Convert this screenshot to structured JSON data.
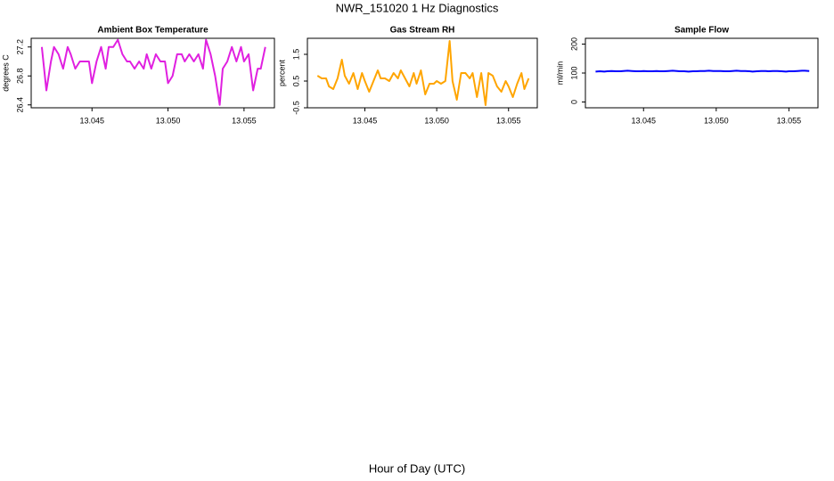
{
  "title": "NWR_151020  1 Hz Diagnostics",
  "xlabel": "Hour of Day (UTC)",
  "chart_data": [
    {
      "type": "line",
      "title": "Ambient Box Temperature",
      "ylabel": "degrees C",
      "x": [
        13.0417,
        13.042,
        13.0423,
        13.0425,
        13.0428,
        13.0431,
        13.0434,
        13.0436,
        13.0439,
        13.0442,
        13.0445,
        13.0448,
        13.045,
        13.0453,
        13.0456,
        13.0459,
        13.0461,
        13.0464,
        13.0467,
        13.047,
        13.0473,
        13.0475,
        13.0478,
        13.0481,
        13.0484,
        13.0486,
        13.0489,
        13.0492,
        13.0495,
        13.0498,
        13.05,
        13.0503,
        13.0506,
        13.0509,
        13.0511,
        13.0514,
        13.0517,
        13.052,
        13.0523,
        13.0525,
        13.0528,
        13.0531,
        13.0534,
        13.0536,
        13.0539,
        13.0542,
        13.0545,
        13.0548,
        13.055,
        13.0553,
        13.0556,
        13.0559,
        13.0561,
        13.0564
      ],
      "series": [
        {
          "name": "Ambient Box Temperature",
          "color": "#e020e0",
          "values": [
            27.2,
            26.6,
            27.0,
            27.2,
            27.1,
            26.9,
            27.2,
            27.1,
            26.9,
            27.0,
            27.0,
            27.0,
            26.7,
            27.0,
            27.2,
            26.9,
            27.2,
            27.2,
            27.3,
            27.1,
            27.0,
            27.0,
            26.9,
            27.0,
            26.9,
            27.1,
            26.9,
            27.1,
            27.0,
            27.0,
            26.7,
            26.8,
            27.1,
            27.1,
            27.0,
            27.1,
            27.0,
            27.1,
            26.9,
            27.3,
            27.1,
            26.8,
            26.4,
            26.9,
            27.0,
            27.2,
            27.0,
            27.2,
            27.0,
            27.1,
            26.6,
            26.9,
            26.9,
            27.2
          ]
        }
      ],
      "xlim": [
        13.041,
        13.057
      ],
      "xticks": [
        {
          "value": 13.045,
          "label": "13.045"
        },
        {
          "value": 13.05,
          "label": "13.050"
        },
        {
          "value": 13.055,
          "label": "13.055"
        }
      ],
      "ylim": [
        26.36,
        27.32
      ],
      "yticks": [
        26.4,
        26.8,
        27.2
      ]
    },
    {
      "type": "line",
      "title": "Gas Stream RH",
      "ylabel": "percent",
      "x": [
        13.0417,
        13.042,
        13.0423,
        13.0425,
        13.0428,
        13.0431,
        13.0434,
        13.0436,
        13.0439,
        13.0442,
        13.0445,
        13.0448,
        13.045,
        13.0453,
        13.0456,
        13.0459,
        13.0461,
        13.0464,
        13.0467,
        13.047,
        13.0473,
        13.0475,
        13.0478,
        13.0481,
        13.0484,
        13.0486,
        13.0489,
        13.0492,
        13.0495,
        13.0498,
        13.05,
        13.0503,
        13.0506,
        13.0509,
        13.0511,
        13.0514,
        13.0517,
        13.052,
        13.0523,
        13.0525,
        13.0528,
        13.0531,
        13.0534,
        13.0536,
        13.0539,
        13.0542,
        13.0545,
        13.0548,
        13.055,
        13.0553,
        13.0556,
        13.0559,
        13.0561,
        13.0564
      ],
      "series": [
        {
          "name": "Gas Stream RH",
          "color": "#ffa500",
          "values": [
            0.7,
            0.6,
            0.6,
            0.3,
            0.2,
            0.6,
            1.3,
            0.7,
            0.4,
            0.8,
            0.2,
            0.8,
            0.5,
            0.1,
            0.5,
            0.9,
            0.6,
            0.6,
            0.5,
            0.8,
            0.6,
            0.9,
            0.6,
            0.3,
            0.8,
            0.4,
            0.9,
            0.0,
            0.4,
            0.4,
            0.5,
            0.4,
            0.5,
            2.0,
            0.5,
            -0.2,
            0.8,
            0.8,
            0.6,
            0.8,
            -0.1,
            0.8,
            -0.4,
            0.8,
            0.7,
            0.3,
            0.1,
            0.5,
            0.3,
            -0.1,
            0.4,
            0.8,
            0.2,
            0.6
          ]
        }
      ],
      "xlim": [
        13.041,
        13.057
      ],
      "xticks": [
        {
          "value": 13.045,
          "label": "13.045"
        },
        {
          "value": 13.05,
          "label": "13.050"
        },
        {
          "value": 13.055,
          "label": "13.055"
        }
      ],
      "ylim": [
        -0.5,
        2.1
      ],
      "yticks": [
        -0.5,
        0.5,
        1.5
      ]
    },
    {
      "type": "line",
      "title": "Sample Flow",
      "ylabel": "ml/min",
      "x": [
        13.0417,
        13.042,
        13.0423,
        13.0425,
        13.0428,
        13.0431,
        13.0434,
        13.0436,
        13.0439,
        13.0442,
        13.0445,
        13.0448,
        13.045,
        13.0453,
        13.0456,
        13.0459,
        13.0461,
        13.0464,
        13.0467,
        13.047,
        13.0473,
        13.0475,
        13.0478,
        13.0481,
        13.0484,
        13.0486,
        13.0489,
        13.0492,
        13.0495,
        13.0498,
        13.05,
        13.0503,
        13.0506,
        13.0509,
        13.0511,
        13.0514,
        13.0517,
        13.052,
        13.0523,
        13.0525,
        13.0528,
        13.0531,
        13.0534,
        13.0536,
        13.0539,
        13.0542,
        13.0545,
        13.0548,
        13.055,
        13.0553,
        13.0556,
        13.0559,
        13.0561,
        13.0564
      ],
      "series": [
        {
          "name": "Sample Flow",
          "color": "#0000ff",
          "values": [
            105,
            106,
            105,
            106,
            107,
            106,
            106,
            107,
            108,
            107,
            106,
            106,
            107,
            106,
            106,
            107,
            106,
            106,
            107,
            108,
            107,
            106,
            106,
            105,
            106,
            106,
            107,
            107,
            108,
            107,
            107,
            107,
            106,
            106,
            107,
            108,
            107,
            107,
            106,
            105,
            106,
            107,
            107,
            106,
            107,
            107,
            106,
            105,
            106,
            106,
            107,
            108,
            108,
            107
          ]
        }
      ],
      "xlim": [
        13.041,
        13.057
      ],
      "xticks": [
        {
          "value": 13.045,
          "label": "13.045"
        },
        {
          "value": 13.05,
          "label": "13.050"
        },
        {
          "value": 13.055,
          "label": "13.055"
        }
      ],
      "ylim": [
        -20,
        220
      ],
      "yticks": [
        0,
        100,
        200
      ]
    }
  ]
}
